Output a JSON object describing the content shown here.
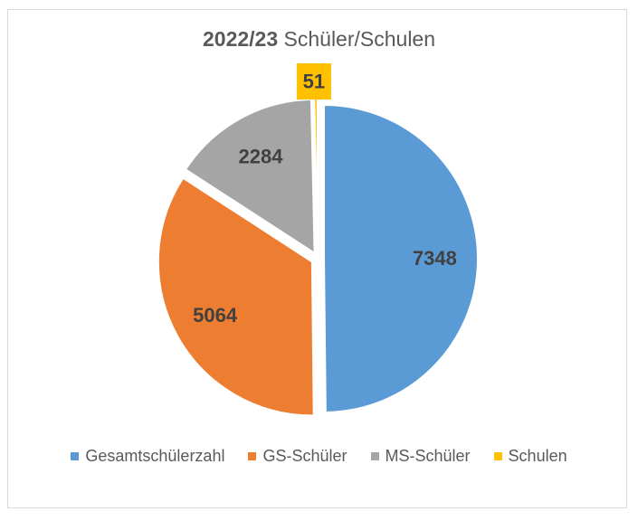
{
  "chart_data": {
    "type": "pie",
    "title_year": "2022/23",
    "title_rest": "Schüler/Schulen",
    "categories": [
      "Gesamtschülerzahl",
      "GS-Schüler",
      "MS-Schüler",
      "Schulen"
    ],
    "values": [
      7348,
      5064,
      2284,
      51
    ],
    "data_labels": [
      "7348",
      "5064",
      "2284",
      "51"
    ],
    "colors": [
      "#5b9bd5",
      "#ed7d31",
      "#a5a5a5",
      "#ffc000"
    ],
    "label_color": "#404040",
    "legend_position": "bottom",
    "exploded": true
  }
}
